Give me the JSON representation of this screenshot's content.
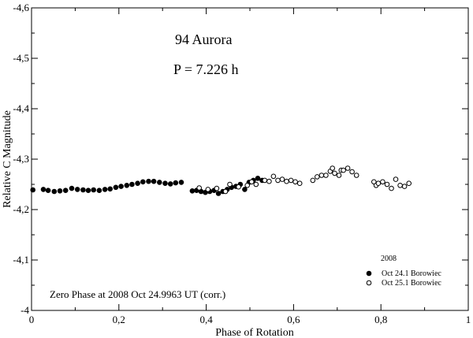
{
  "chart_data": {
    "type": "scatter",
    "title": "94 Aurora",
    "subtitle": "P = 7.226 h",
    "xlabel": "Phase of Rotation",
    "ylabel": "Relative C Magnitude",
    "xlim": [
      0,
      1
    ],
    "ylim": [
      -4.0,
      -4.6
    ],
    "y_inverted": true,
    "x_ticks": [
      0,
      0.2,
      0.4,
      0.6,
      0.8,
      1
    ],
    "x_tick_labels": [
      "0",
      "0,2",
      "0,4",
      "0,6",
      "0,8",
      "1"
    ],
    "y_ticks": [
      -4.6,
      -4.5,
      -4.4,
      -4.3,
      -4.2,
      -4.1,
      -4.0
    ],
    "y_tick_labels": [
      "-4,6",
      "-4,5",
      "-4,4",
      "-4,3",
      "-4,2",
      "-4,1",
      "-4"
    ],
    "grid": false,
    "legend_title": "2008",
    "legend_position": "bottom-right",
    "annotation": "Zero Phase at 2008 Oct 24.9963 UT (corr.)",
    "series": [
      {
        "name": "Oct 24.1 Borowiec",
        "marker": "filled-circle",
        "color": "#000000",
        "x": [
          0.003,
          0.027,
          0.038,
          0.052,
          0.065,
          0.078,
          0.092,
          0.105,
          0.118,
          0.13,
          0.142,
          0.155,
          0.168,
          0.18,
          0.193,
          0.205,
          0.218,
          0.23,
          0.243,
          0.255,
          0.268,
          0.28,
          0.293,
          0.306,
          0.318,
          0.33,
          0.343,
          0.368,
          0.378,
          0.388,
          0.398,
          0.408,
          0.418,
          0.428,
          0.438,
          0.448,
          0.458,
          0.468,
          0.478,
          0.488,
          0.498,
          0.508,
          0.518,
          0.528
        ],
        "y": [
          -4.239,
          -4.24,
          -4.238,
          -4.236,
          -4.237,
          -4.238,
          -4.242,
          -4.24,
          -4.239,
          -4.238,
          -4.239,
          -4.238,
          -4.24,
          -4.241,
          -4.244,
          -4.246,
          -4.248,
          -4.25,
          -4.252,
          -4.255,
          -4.256,
          -4.256,
          -4.254,
          -4.252,
          -4.251,
          -4.253,
          -4.254,
          -4.237,
          -4.238,
          -4.236,
          -4.234,
          -4.236,
          -4.238,
          -4.232,
          -4.236,
          -4.24,
          -4.244,
          -4.246,
          -4.25,
          -4.24,
          -4.254,
          -4.258,
          -4.262,
          -4.258
        ]
      },
      {
        "name": "Oct 25.1 Borowiec",
        "marker": "open-circle",
        "color": "#000000",
        "x": [
          0.384,
          0.404,
          0.424,
          0.444,
          0.454,
          0.474,
          0.494,
          0.504,
          0.514,
          0.534,
          0.544,
          0.554,
          0.564,
          0.574,
          0.584,
          0.594,
          0.604,
          0.614,
          0.644,
          0.654,
          0.664,
          0.674,
          0.684,
          0.689,
          0.694,
          0.704,
          0.709,
          0.714,
          0.724,
          0.734,
          0.744,
          0.784,
          0.789,
          0.794,
          0.804,
          0.814,
          0.824,
          0.834,
          0.844,
          0.854,
          0.864
        ],
        "y": [
          -4.243,
          -4.24,
          -4.242,
          -4.236,
          -4.25,
          -4.245,
          -4.248,
          -4.255,
          -4.25,
          -4.258,
          -4.256,
          -4.266,
          -4.258,
          -4.26,
          -4.256,
          -4.258,
          -4.255,
          -4.252,
          -4.258,
          -4.265,
          -4.268,
          -4.268,
          -4.276,
          -4.282,
          -4.272,
          -4.268,
          -4.278,
          -4.278,
          -4.282,
          -4.275,
          -4.268,
          -4.255,
          -4.248,
          -4.252,
          -4.255,
          -4.25,
          -4.242,
          -4.26,
          -4.248,
          -4.246,
          -4.252
        ]
      }
    ]
  }
}
